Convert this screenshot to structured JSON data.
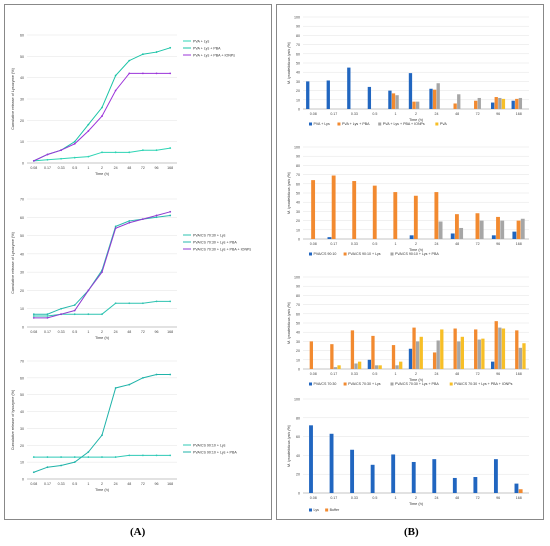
{
  "panel_labels": {
    "a": "(A)",
    "b": "(B)"
  },
  "colors": {
    "pva_lys": "#2dd4b4",
    "pva_lys_pba": "#19c3a6",
    "pva_lys_pba_ionps": "#9b34d9",
    "pvacs_lys": "#2ec3b1",
    "pvacs_lys_pba": "#27b9ad",
    "pvacs_lys_pba_ionps": "#8f3bd0",
    "single_lys": "#2fc9b6",
    "single_lys_pba": "#1fb3a9",
    "bar_blue": "#2166c0",
    "bar_orange": "#f28a30",
    "bar_gray": "#a6a6a6",
    "bar_yellow": "#f7bf27"
  },
  "chart_data": [
    {
      "id": "a1",
      "type": "line",
      "x": [
        "0.08",
        "0.17",
        "0.33",
        "0.5",
        "1",
        "2",
        "24",
        "48",
        "72",
        "96",
        "168"
      ],
      "xlabel": "Time (h)",
      "ylabel": "Cumulative release of Lysozyme (%)",
      "ylim": [
        0,
        60
      ],
      "yticks": [
        0,
        10,
        20,
        30,
        40,
        50,
        60
      ],
      "series": [
        {
          "name": "PVA + Lys",
          "color": "pva_lys",
          "values": [
            1,
            1.5,
            2,
            2.5,
            3,
            5,
            5,
            5,
            6,
            6,
            7
          ]
        },
        {
          "name": "PVA + Lys + PBA",
          "color": "pva_lys_pba",
          "values": [
            1,
            4,
            6,
            10,
            18,
            26,
            41,
            48,
            51,
            52,
            54
          ]
        },
        {
          "name": "PVA + Lys + PBA + IONPs",
          "color": "pva_lys_pba_ionps",
          "values": [
            1,
            4,
            6,
            9,
            15,
            22,
            34,
            42,
            42,
            42,
            42
          ]
        }
      ]
    },
    {
      "id": "a2",
      "type": "line",
      "x": [
        "0.08",
        "0.17",
        "0.33",
        "0.5",
        "1",
        "2",
        "24",
        "48",
        "72",
        "96",
        "168"
      ],
      "xlabel": "Time (h)",
      "ylabel": "Cumulative release of Lysozyme (%)",
      "ylim": [
        0,
        70
      ],
      "yticks": [
        0,
        10,
        20,
        30,
        40,
        50,
        60,
        70
      ],
      "series": [
        {
          "name": "PVA/CS 70:30 + Lys",
          "color": "pvacs_lys",
          "values": [
            6,
            6,
            7,
            7,
            7,
            7,
            13,
            13,
            13,
            14,
            14
          ]
        },
        {
          "name": "PVA/CS 70:30 + Lys + PBA",
          "color": "pvacs_lys_pba",
          "values": [
            7,
            7,
            10,
            12,
            20,
            31,
            55,
            58,
            59,
            60,
            61
          ]
        },
        {
          "name": "PVA/CS 70:30 + Lys + PBA + IONPs",
          "color": "pvacs_lys_pba_ionps",
          "values": [
            5,
            5,
            7,
            9,
            20,
            30,
            54,
            57,
            59,
            61,
            63
          ]
        }
      ]
    },
    {
      "id": "a3",
      "type": "line",
      "x": [
        "0.08",
        "0.17",
        "0.33",
        "0.5",
        "1",
        "2",
        "24",
        "48",
        "72",
        "96",
        "168"
      ],
      "xlabel": "Time (h)",
      "ylabel": "Cumulative release of lysozyme (%)",
      "ylim": [
        0,
        70
      ],
      "yticks": [
        0,
        10,
        20,
        30,
        40,
        50,
        60,
        70
      ],
      "series": [
        {
          "name": "PVA/CS 90:10 + Lys",
          "color": "single_lys",
          "values": [
            13,
            13,
            13,
            13,
            13,
            13,
            13,
            14,
            14,
            14,
            14
          ]
        },
        {
          "name": "PVA/CS 90:10 + Lys + PBA",
          "color": "single_lys_pba",
          "values": [
            4,
            7,
            8,
            10,
            16,
            26,
            54,
            56,
            60,
            62,
            62
          ]
        }
      ]
    },
    {
      "id": "b1",
      "type": "bar",
      "categories": [
        "0.08",
        "0.17",
        "0.33",
        "0.5",
        "1",
        "2",
        "24",
        "48",
        "72",
        "96",
        "168"
      ],
      "xlabel": "Time (h)",
      "ylabel": "M. lysodeikticus lysis (%)",
      "ylim": [
        0,
        100
      ],
      "yticks": [
        0,
        10,
        20,
        30,
        40,
        50,
        60,
        70,
        80,
        90,
        100
      ],
      "series": [
        {
          "name": "PVA + Lys",
          "color": "bar_blue",
          "values": [
            30,
            31,
            45,
            24,
            20,
            39,
            22,
            0,
            0,
            7,
            9
          ]
        },
        {
          "name": "PVA + Lys + PBA",
          "color": "bar_orange",
          "values": [
            0,
            0,
            0,
            0,
            17,
            8,
            21,
            6,
            9,
            13,
            11
          ]
        },
        {
          "name": "PVA + Lys + PBA + IONPs",
          "color": "bar_gray",
          "values": [
            0,
            0,
            0,
            0,
            15,
            8,
            28,
            16,
            12,
            12,
            12
          ]
        },
        {
          "name": "PVA",
          "color": "bar_yellow",
          "values": [
            0,
            0,
            0,
            0,
            0,
            0,
            0,
            0,
            0,
            11,
            0
          ]
        }
      ]
    },
    {
      "id": "b2",
      "type": "bar",
      "categories": [
        "0.08",
        "0.17",
        "0.33",
        "0.5",
        "1",
        "2",
        "24",
        "48",
        "72",
        "96",
        "168"
      ],
      "xlabel": "Time (h)",
      "ylabel": "M. lysodeikticus lysis (%)",
      "ylim": [
        0,
        100
      ],
      "yticks": [
        0,
        10,
        20,
        30,
        40,
        50,
        60,
        70,
        80,
        90,
        100
      ],
      "series": [
        {
          "name": "PVA/CS 90:10",
          "color": "bar_blue",
          "values": [
            0,
            2,
            0,
            0,
            0,
            4,
            0,
            6,
            0,
            4,
            8
          ]
        },
        {
          "name": "PVA/CS 90:10 + Lys",
          "color": "bar_orange",
          "values": [
            64,
            69,
            63,
            58,
            51,
            47,
            51,
            27,
            28,
            24,
            20
          ]
        },
        {
          "name": "PVA/CS 90:10 + Lys + PBA",
          "color": "bar_gray",
          "values": [
            0,
            0,
            0,
            0,
            0,
            0,
            19,
            12,
            20,
            20,
            22
          ]
        }
      ]
    },
    {
      "id": "b3",
      "type": "bar",
      "categories": [
        "0.08",
        "0.17",
        "0.33",
        "0.5",
        "1",
        "2",
        "24",
        "48",
        "72",
        "96",
        "168"
      ],
      "xlabel": "Time (h)",
      "ylabel": "M. lysodeikticus lysis (%)",
      "ylim": [
        0,
        100
      ],
      "yticks": [
        0,
        10,
        20,
        30,
        40,
        50,
        60,
        70,
        80,
        90,
        100
      ],
      "series": [
        {
          "name": "PVA/CS 70:30",
          "color": "bar_blue",
          "values": [
            0,
            0,
            0,
            10,
            0,
            22,
            0,
            0,
            0,
            8,
            0
          ]
        },
        {
          "name": "PVA/CS 70:30 + Lys",
          "color": "bar_orange",
          "values": [
            30,
            27,
            42,
            36,
            26,
            45,
            18,
            44,
            43,
            52,
            42
          ]
        },
        {
          "name": "PVA/CS 70:30 + Lys + PBA",
          "color": "bar_gray",
          "values": [
            0,
            2,
            6,
            4,
            4,
            30,
            31,
            30,
            32,
            45,
            23
          ]
        },
        {
          "name": "PVA/CS 70:30 + Lys + PBA + IONPs",
          "color": "bar_yellow",
          "values": [
            0,
            4,
            8,
            4,
            8,
            35,
            43,
            35,
            33,
            44,
            28
          ]
        }
      ]
    },
    {
      "id": "b4",
      "type": "bar",
      "categories": [
        "0.08",
        "0.17",
        "0.33",
        "0.5",
        "1",
        "2",
        "24",
        "48",
        "72",
        "96",
        "168"
      ],
      "xlabel": "Time (h)",
      "ylabel": "M. lysodeikticus lysis (%)",
      "ylim": [
        0,
        100
      ],
      "yticks": [
        0,
        20,
        40,
        60,
        80,
        100
      ],
      "series": [
        {
          "name": "Lys",
          "color": "bar_blue",
          "values": [
            72,
            63,
            46,
            30,
            41,
            33,
            36,
            16,
            17,
            36,
            10
          ]
        },
        {
          "name": "Buffer",
          "color": "bar_orange",
          "values": [
            0,
            0,
            0,
            0,
            0,
            0,
            0,
            0,
            0,
            0,
            4
          ]
        }
      ]
    }
  ]
}
